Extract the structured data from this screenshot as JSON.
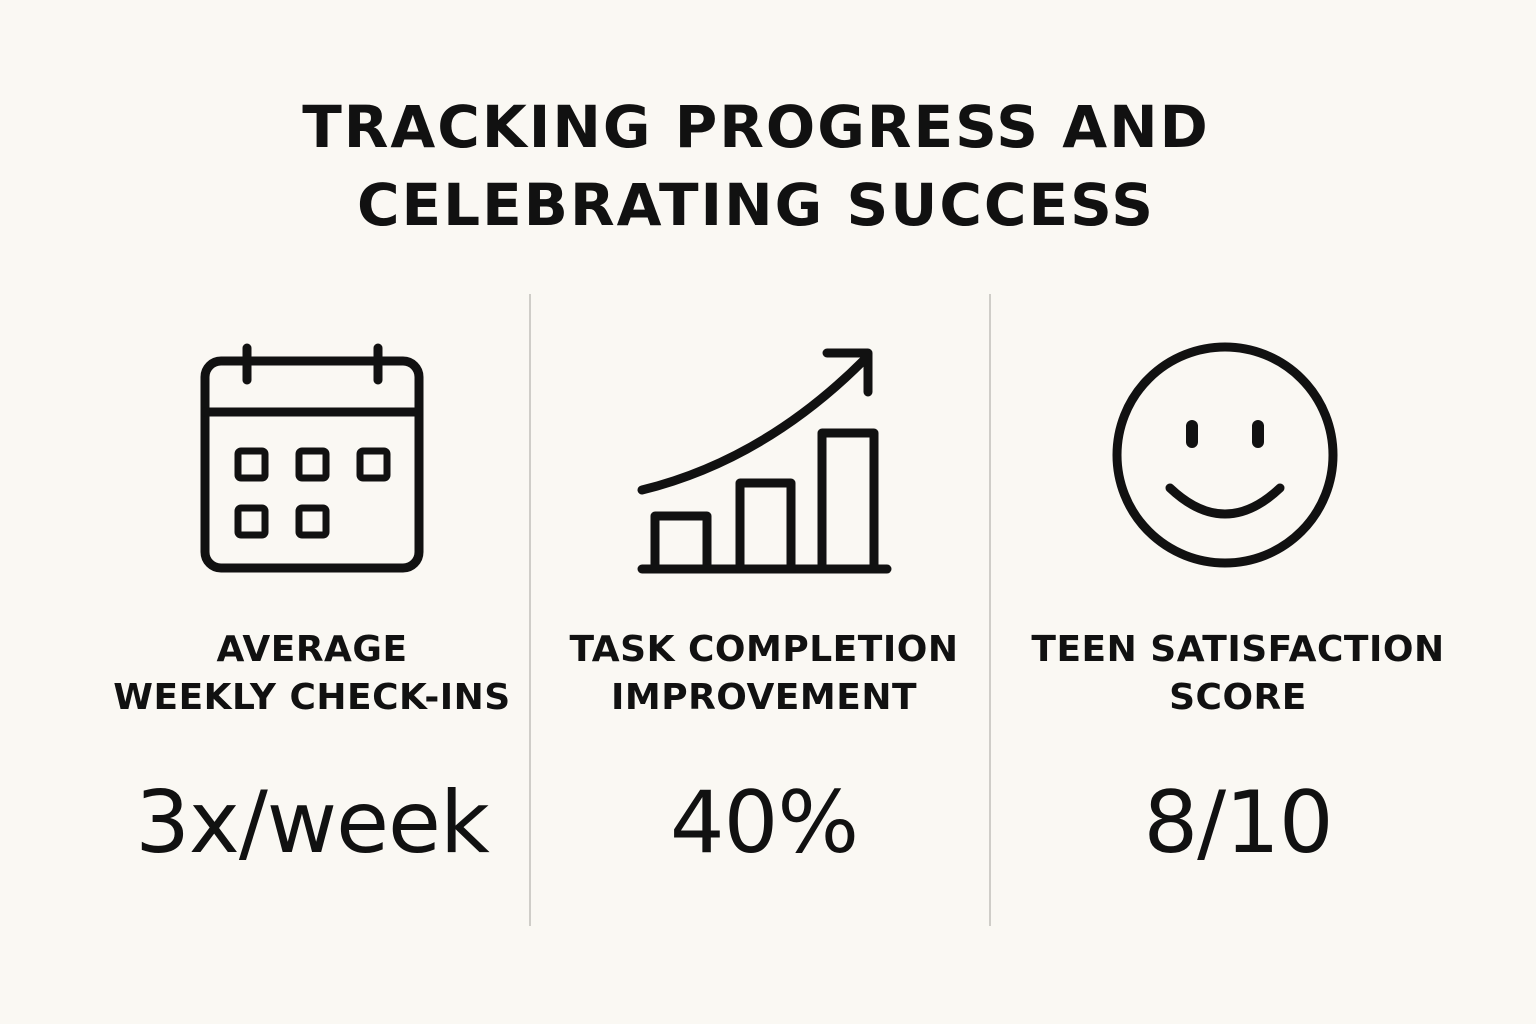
{
  "title": {
    "line1": "TRACKING PROGRESS AND",
    "line2": "CELEBRATING SUCCESS"
  },
  "metrics": [
    {
      "icon": "calendar-icon",
      "label_line1": "AVERAGE",
      "label_line2": "WEEKLY CHECK-INS",
      "value": "3x/week"
    },
    {
      "icon": "bar-chart-trend-icon",
      "label_line1": "TASK COMPLETION",
      "label_line2": "IMPROVEMENT",
      "value": "40%"
    },
    {
      "icon": "smiley-face-icon",
      "label_line1": "TEEN SATISFACTION",
      "label_line2": "SCORE",
      "value": "8/10"
    }
  ],
  "colors": {
    "background": "#faf8f3",
    "ink": "#111111",
    "divider": "#cfcdc8"
  }
}
